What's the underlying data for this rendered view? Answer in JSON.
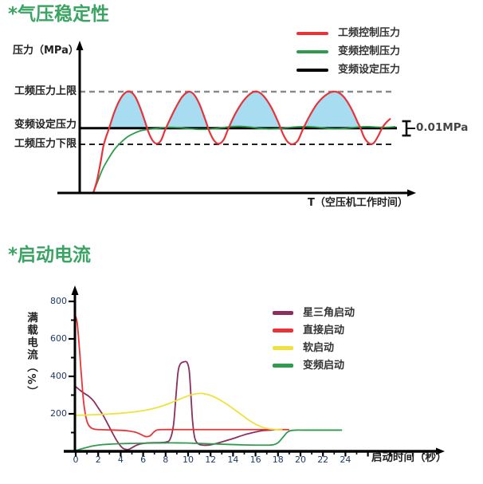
{
  "page_bg": "#ffffff",
  "charts": [
    {
      "title": "*气压稳定性",
      "title_color": "#3ba463",
      "y_axis_label": "压力（MPa）",
      "x_axis_label": "T（空压机工作时间）",
      "annotation": "0.01MPa",
      "reference_labels": [
        "工频压力上限",
        "变频设定压力",
        "工频压力下限"
      ],
      "legend": [
        {
          "label": "工频控制压力",
          "color": "#e8333a"
        },
        {
          "label": "变频控制压力",
          "color": "#2d9b4a"
        },
        {
          "label": "变频设定压力",
          "color": "#000000"
        }
      ]
    },
    {
      "title": "*启动电流",
      "title_color": "#3ba463",
      "y_axis_label": "满载电流（%）",
      "x_axis_label": "启动时间（秒）",
      "legend": [
        {
          "label": "星三角启动",
          "color": "#8d2e5f"
        },
        {
          "label": "直接启动",
          "color": "#ea3237"
        },
        {
          "label": "软启动",
          "color": "#efe23d"
        },
        {
          "label": "变频启动",
          "color": "#2f9c4d"
        }
      ]
    }
  ],
  "chart_data": [
    {
      "type": "line",
      "title": "气压稳定性",
      "xlabel": "T（空压机工作时间）",
      "ylabel": "压力（MPa）",
      "x_units": "arbitrary 0-100 (no numeric ticks shown)",
      "y_units": "relative pressure, 工频压力上限 = 1.0",
      "reference_lines": {
        "工频压力上限": 1.0,
        "变频设定压力": 0.64,
        "工频压力下限": 0.48
      },
      "band_annotation": "0.01MPa",
      "fill": {
        "between": [
          "工频控制压力",
          "变频设定压力"
        ],
        "where": "above_set_line",
        "color": "#a8dcf1",
        "x_max": 85
      },
      "styles": {
        "upper_dashed_color": "#8a8a8a",
        "lower_dashed_color": "#222222",
        "axis_color": "#000000"
      },
      "series": [
        {
          "name": "工频控制压力",
          "color": "#e8333a",
          "width": 2.2,
          "points": [
            [
              4.1,
              0
            ],
            [
              5.2,
              0.12
            ],
            [
              6.3,
              0.3
            ],
            [
              7.3,
              0.48
            ],
            [
              8.9,
              0.64
            ],
            [
              10.5,
              0.8
            ],
            [
              12.3,
              0.93
            ],
            [
              14,
              0.995
            ],
            [
              15.3,
              1.0
            ],
            [
              16.8,
              0.95
            ],
            [
              18.3,
              0.84
            ],
            [
              19.8,
              0.7
            ],
            [
              20.8,
              0.6
            ],
            [
              22,
              0.52
            ],
            [
              23.3,
              0.487
            ],
            [
              24.6,
              0.52
            ],
            [
              25.8,
              0.62
            ],
            [
              27.2,
              0.72
            ],
            [
              29,
              0.84
            ],
            [
              31,
              0.95
            ],
            [
              33,
              1.0
            ],
            [
              34.6,
              0.97
            ],
            [
              36.3,
              0.87
            ],
            [
              38,
              0.72
            ],
            [
              39.3,
              0.6
            ],
            [
              40.8,
              0.51
            ],
            [
              42.2,
              0.487
            ],
            [
              43.6,
              0.53
            ],
            [
              45,
              0.64
            ],
            [
              47,
              0.78
            ],
            [
              49.5,
              0.91
            ],
            [
              52,
              0.99
            ],
            [
              53.8,
              1.0
            ],
            [
              55.8,
              0.95
            ],
            [
              58,
              0.84
            ],
            [
              60,
              0.7
            ],
            [
              61.5,
              0.58
            ],
            [
              63,
              0.5
            ],
            [
              64.5,
              0.483
            ],
            [
              66,
              0.52
            ],
            [
              67.5,
              0.63
            ],
            [
              69.5,
              0.76
            ],
            [
              72,
              0.89
            ],
            [
              75,
              0.98
            ],
            [
              77.5,
              1.0
            ],
            [
              79.8,
              0.95
            ],
            [
              82,
              0.84
            ],
            [
              84,
              0.7
            ],
            [
              84.9,
              0.64
            ],
            [
              86,
              0.55
            ],
            [
              87.5,
              0.49
            ],
            [
              88.8,
              0.49
            ],
            [
              90.2,
              0.56
            ],
            [
              91.5,
              0.645
            ],
            [
              92.8,
              0.7
            ],
            [
              94,
              0.735
            ]
          ]
        },
        {
          "name": "变频控制压力",
          "color": "#2d9b4a",
          "width": 1.8,
          "points": [
            [
              4.1,
              0
            ],
            [
              5.5,
              0.12
            ],
            [
              7,
              0.24
            ],
            [
              8.7,
              0.34
            ],
            [
              10.5,
              0.43
            ],
            [
              12.5,
              0.5
            ],
            [
              14.5,
              0.555
            ],
            [
              16.5,
              0.59
            ],
            [
              18.5,
              0.615
            ],
            [
              21,
              0.63
            ],
            [
              24,
              0.64
            ],
            [
              27,
              0.648
            ],
            [
              30,
              0.645
            ],
            [
              33,
              0.635
            ],
            [
              36,
              0.628
            ],
            [
              39,
              0.63
            ],
            [
              42,
              0.64
            ],
            [
              45,
              0.652
            ],
            [
              48,
              0.658
            ],
            [
              51,
              0.652
            ],
            [
              54,
              0.64
            ],
            [
              57,
              0.632
            ],
            [
              60,
              0.635
            ],
            [
              63,
              0.645
            ],
            [
              66,
              0.653
            ],
            [
              69,
              0.655
            ],
            [
              72,
              0.648
            ],
            [
              75,
              0.638
            ],
            [
              78,
              0.634
            ],
            [
              81,
              0.64
            ],
            [
              84,
              0.65
            ],
            [
              87,
              0.655
            ],
            [
              90,
              0.65
            ],
            [
              93,
              0.648
            ],
            [
              95.5,
              0.655
            ]
          ]
        },
        {
          "name": "变频设定压力",
          "color": "#000000",
          "width": 3,
          "points": [
            [
              0,
              0.64
            ],
            [
              95.9,
              0.64
            ]
          ]
        }
      ]
    },
    {
      "type": "line",
      "title": "启动电流",
      "xlabel": "启动时间（秒）",
      "ylabel": "满载电流（%）",
      "xlim": [
        0,
        24
      ],
      "ylim": [
        0,
        850
      ],
      "x_ticks": [
        0,
        2,
        4,
        6,
        8,
        10,
        12,
        14,
        16,
        18,
        20,
        22,
        24
      ],
      "y_ticks": [
        200,
        400,
        600,
        800
      ],
      "grid": false,
      "legend_position": "upper right",
      "series": [
        {
          "name": "星三角启动",
          "color": "#8d2e5f",
          "width": 1.8,
          "points": [
            [
              0,
              345
            ],
            [
              0.4,
              325
            ],
            [
              0.8,
              308
            ],
            [
              1.2,
              292
            ],
            [
              1.6,
              268
            ],
            [
              2,
              232
            ],
            [
              2.4,
              196
            ],
            [
              2.8,
              152
            ],
            [
              3.2,
              106
            ],
            [
              3.6,
              62
            ],
            [
              4,
              28
            ],
            [
              4.3,
              13
            ],
            [
              4.7,
              10
            ],
            [
              5,
              19
            ],
            [
              5.4,
              32
            ],
            [
              5.8,
              40
            ],
            [
              6.4,
              45
            ],
            [
              7.2,
              46
            ],
            [
              8,
              49
            ],
            [
              8.4,
              65
            ],
            [
              8.7,
              140
            ],
            [
              8.9,
              280
            ],
            [
              9.1,
              420
            ],
            [
              9.3,
              465
            ],
            [
              9.6,
              477
            ],
            [
              9.9,
              475
            ],
            [
              10.1,
              430
            ],
            [
              10.25,
              300
            ],
            [
              10.4,
              160
            ],
            [
              10.6,
              70
            ],
            [
              10.9,
              40
            ],
            [
              11.3,
              33
            ],
            [
              11.8,
              33
            ],
            [
              12.4,
              40
            ],
            [
              13,
              50
            ],
            [
              14,
              68
            ],
            [
              15,
              88
            ],
            [
              16,
              103
            ],
            [
              16.6,
              110
            ],
            [
              17.2,
              113
            ],
            [
              17.7,
              115
            ]
          ]
        },
        {
          "name": "直接启动",
          "color": "#ea3237",
          "width": 1.8,
          "points": [
            [
              0,
              720
            ],
            [
              0.12,
              690
            ],
            [
              0.25,
              610
            ],
            [
              0.4,
              490
            ],
            [
              0.55,
              370
            ],
            [
              0.7,
              265
            ],
            [
              0.9,
              185
            ],
            [
              1.1,
              145
            ],
            [
              1.4,
              124
            ],
            [
              1.8,
              117
            ],
            [
              2.5,
              115
            ],
            [
              3.5,
              113
            ],
            [
              4.5,
              110
            ],
            [
              5.3,
              102
            ],
            [
              5.8,
              90
            ],
            [
              6.2,
              79
            ],
            [
              6.6,
              82
            ],
            [
              6.9,
              100
            ],
            [
              7.2,
              113
            ],
            [
              7.7,
              116
            ],
            [
              9,
              116
            ],
            [
              11,
              116
            ],
            [
              13,
              116
            ],
            [
              15,
              116
            ],
            [
              17,
              116
            ],
            [
              19,
              116
            ]
          ]
        },
        {
          "name": "软启动",
          "color": "#efe23d",
          "width": 1.8,
          "points": [
            [
              0,
              192
            ],
            [
              1,
              194
            ],
            [
              2,
              196
            ],
            [
              3,
              199
            ],
            [
              4,
              203
            ],
            [
              5,
              209
            ],
            [
              6,
              217
            ],
            [
              7,
              230
            ],
            [
              8,
              248
            ],
            [
              9,
              272
            ],
            [
              10,
              296
            ],
            [
              10.6,
              306
            ],
            [
              11.2,
              309
            ],
            [
              11.8,
              302
            ],
            [
              12.4,
              288
            ],
            [
              13,
              268
            ],
            [
              13.6,
              245
            ],
            [
              14.2,
              219
            ],
            [
              14.8,
              193
            ],
            [
              15.4,
              167
            ],
            [
              16,
              145
            ],
            [
              16.6,
              129
            ],
            [
              17.2,
              120
            ],
            [
              17.8,
              116
            ],
            [
              18.4,
              114
            ]
          ]
        },
        {
          "name": "变频启动",
          "color": "#2f9c4d",
          "width": 1.8,
          "points": [
            [
              0,
              4
            ],
            [
              0.5,
              13
            ],
            [
              1,
              21
            ],
            [
              1.5,
              28
            ],
            [
              2,
              33
            ],
            [
              2.5,
              36
            ],
            [
              3,
              38
            ],
            [
              4,
              41
            ],
            [
              5,
              42
            ],
            [
              6,
              43
            ],
            [
              7,
              44
            ],
            [
              8,
              45
            ],
            [
              9,
              45
            ],
            [
              10,
              44
            ],
            [
              11,
              42
            ],
            [
              12,
              40
            ],
            [
              13,
              38
            ],
            [
              14,
              36
            ],
            [
              15,
              34
            ],
            [
              16,
              33
            ],
            [
              17,
              33
            ],
            [
              17.6,
              35
            ],
            [
              18,
              46
            ],
            [
              18.4,
              72
            ],
            [
              18.8,
              100
            ],
            [
              19.1,
              110
            ],
            [
              19.6,
              113
            ],
            [
              20.5,
              113
            ],
            [
              22,
              113
            ],
            [
              23.7,
              113
            ]
          ]
        }
      ]
    }
  ]
}
